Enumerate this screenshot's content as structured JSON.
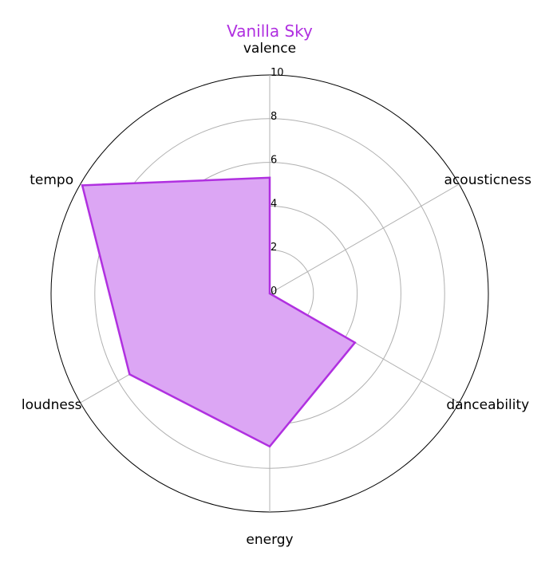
{
  "chart_data": {
    "type": "radar",
    "title": "Vanilla Sky",
    "axes": [
      "valence",
      "acousticness",
      "danceability",
      "energy",
      "loudness",
      "tempo"
    ],
    "series": [
      {
        "values": [
          5.3,
          0.0,
          4.5,
          7.0,
          7.4,
          9.9
        ]
      }
    ],
    "r_ticks": [
      "0",
      "2",
      "4",
      "6",
      "8",
      "10"
    ],
    "rlim": [
      0,
      10
    ],
    "grid": true,
    "colors": {
      "series": "#b030e0",
      "fill": "#dca6f4",
      "title": "#b030e0",
      "grid": "#b0b0b0",
      "frame": "#000000"
    }
  }
}
